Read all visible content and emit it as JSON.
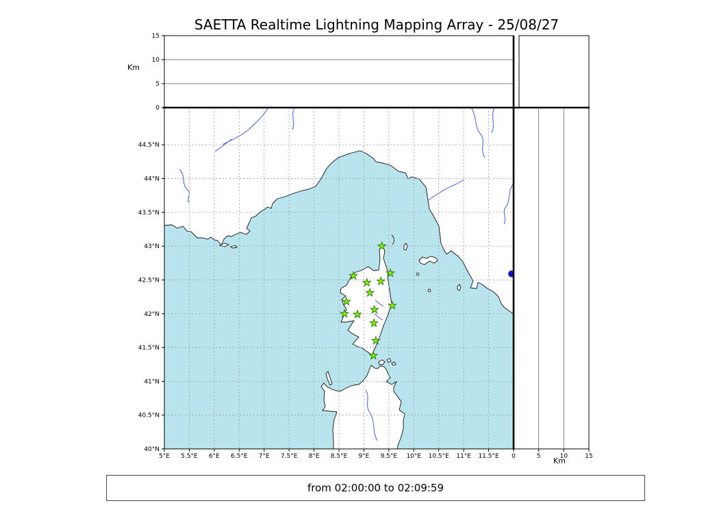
{
  "title": "SAETTA Realtime Lightning Mapping Array - 25/08/27",
  "footer": {
    "time_range": "from 02:00:00 to 02:09:59"
  },
  "altitude_panel": {
    "unit_label": "Km",
    "axis_range_km": [
      0,
      15
    ],
    "ticks": [
      {
        "v": 0,
        "label": "0"
      },
      {
        "v": 5,
        "label": "5"
      },
      {
        "v": 10,
        "label": "10"
      },
      {
        "v": 15,
        "label": "15"
      }
    ]
  },
  "right_panel": {
    "unit_label": "Km",
    "axis_range_km": [
      0,
      15
    ],
    "ticks": [
      {
        "v": 0,
        "label": "0"
      },
      {
        "v": 5,
        "label": "5"
      },
      {
        "v": 10,
        "label": "10"
      },
      {
        "v": 15,
        "label": "15"
      }
    ]
  },
  "map": {
    "lon_range": [
      5,
      12
    ],
    "lat_range": [
      40,
      45.05
    ],
    "sea_color": "#b8e4ee",
    "land_color": "#ffffff",
    "grid_color": "#999999",
    "lon_ticks": [
      {
        "v": 5,
        "label": "5°E"
      },
      {
        "v": 5.5,
        "label": "5.5°E"
      },
      {
        "v": 6,
        "label": "6°E"
      },
      {
        "v": 6.5,
        "label": "6.5°E"
      },
      {
        "v": 7,
        "label": "7°E"
      },
      {
        "v": 7.5,
        "label": "7.5°E"
      },
      {
        "v": 8,
        "label": "8°E"
      },
      {
        "v": 8.5,
        "label": "8.5°E"
      },
      {
        "v": 9,
        "label": "9°E"
      },
      {
        "v": 9.5,
        "label": "9.5°E"
      },
      {
        "v": 10,
        "label": "10°E"
      },
      {
        "v": 10.5,
        "label": "10.5°E"
      },
      {
        "v": 11,
        "label": "11°E"
      },
      {
        "v": 11.5,
        "label": "11.5°E"
      }
    ],
    "lat_ticks": [
      {
        "v": 40,
        "label": "40°N"
      },
      {
        "v": 40.5,
        "label": "40.5°N"
      },
      {
        "v": 41,
        "label": "41°N"
      },
      {
        "v": 41.5,
        "label": "41.5°N"
      },
      {
        "v": 42,
        "label": "42°N"
      },
      {
        "v": 42.5,
        "label": "42.5°N"
      },
      {
        "v": 43,
        "label": "43°N"
      },
      {
        "v": 43.5,
        "label": "43.5°N"
      },
      {
        "v": 44,
        "label": "44°N"
      },
      {
        "v": 44.5,
        "label": "44.5°N"
      }
    ],
    "station_marker": {
      "shape": "star",
      "fill": "#7dfc00",
      "stroke": "#2d6e00"
    },
    "stations": [
      {
        "lon": 9.36,
        "lat": 43.0
      },
      {
        "lon": 8.79,
        "lat": 42.56
      },
      {
        "lon": 9.06,
        "lat": 42.46
      },
      {
        "lon": 9.34,
        "lat": 42.48
      },
      {
        "lon": 9.53,
        "lat": 42.6
      },
      {
        "lon": 9.12,
        "lat": 42.31
      },
      {
        "lon": 8.65,
        "lat": 42.18
      },
      {
        "lon": 9.57,
        "lat": 42.12
      },
      {
        "lon": 8.61,
        "lat": 42.0
      },
      {
        "lon": 8.87,
        "lat": 41.99
      },
      {
        "lon": 9.21,
        "lat": 42.06
      },
      {
        "lon": 9.2,
        "lat": 41.86
      },
      {
        "lon": 9.24,
        "lat": 41.6
      },
      {
        "lon": 9.19,
        "lat": 41.38
      }
    ],
    "event_dot": {
      "lon": 11.96,
      "lat": 42.59,
      "color": "#1212c8"
    }
  }
}
